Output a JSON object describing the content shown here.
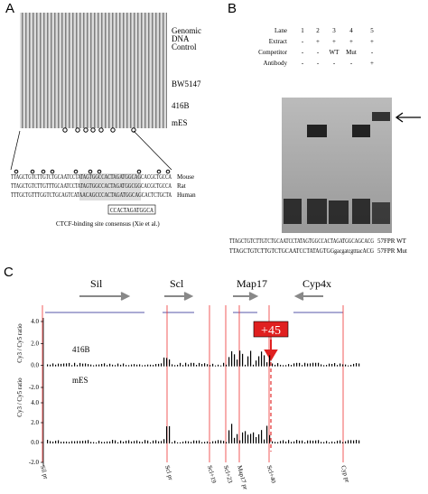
{
  "panel_a": {
    "label": "A",
    "lanes": [
      "Genomic",
      "DNA",
      "Control",
      "BW5147",
      "416B",
      "mES"
    ],
    "species": [
      "Mouse",
      "Rat",
      "Human"
    ],
    "sequences": [
      "TTAGCTGTCTTGTCTGCAATCCTATAGTGGCCACTAGATGGCAGCACGCTGCCA",
      "TTAGCTGTCTTGTTTGCAATCCTATAGTGGCCACTAGATGGCGGCACGCTGCCA",
      "TTTGCTGTTTGGTCTGCAGTCATAACAGCCCACTAGATGGCAGCACTCTGCTA"
    ],
    "consensus": "CCACTAGATGGCA",
    "caption": "CTCF-binding site consensus (Xie et al.)"
  },
  "panel_b": {
    "label": "B",
    "rows": [
      {
        "name": "Lane",
        "cells": [
          "1",
          "2",
          "3",
          "4",
          "5"
        ]
      },
      {
        "name": "Extract",
        "cells": [
          "-",
          "+",
          "+",
          "+",
          "+"
        ]
      },
      {
        "name": "Competitor",
        "cells": [
          "-",
          "-",
          "WT",
          "Mut",
          "-"
        ]
      },
      {
        "name": "Antibody",
        "cells": [
          "-",
          "-",
          "-",
          "-",
          "+"
        ]
      }
    ],
    "probes": [
      {
        "seq": "TTAGCTGTCTTGTCTGCAATCCTATAGTGGCCACTAGATGGCAGCACG",
        "name": "57FPR WT"
      },
      {
        "seq": "TTAGCTGTCTTGTCTGCAATCCTATAGTGGgacgatcgtttacACG",
        "name": "57FPR Mut"
      }
    ]
  },
  "panel_c": {
    "label": "C",
    "genes": [
      "Sil",
      "Scl",
      "Map17",
      "Cyp4x"
    ],
    "highlight": "+45",
    "tracks": [
      "416B",
      "mES"
    ],
    "ylabel": "Cy3 / Cy5 ratio",
    "yticks": [
      {
        "value": 4,
        "label": "4.0"
      },
      {
        "value": 2,
        "label": "2.0"
      },
      {
        "value": 0,
        "label": "0.0"
      },
      {
        "value": -2,
        "label": "-2.0"
      }
    ],
    "ylim": [
      -2.6,
      4.6
    ],
    "sites": [
      "Sil pr",
      "Scl pr",
      "Scl+19",
      "Scl+23",
      "Map17 pr",
      "Scl+40",
      "Cyp pr"
    ]
  }
}
